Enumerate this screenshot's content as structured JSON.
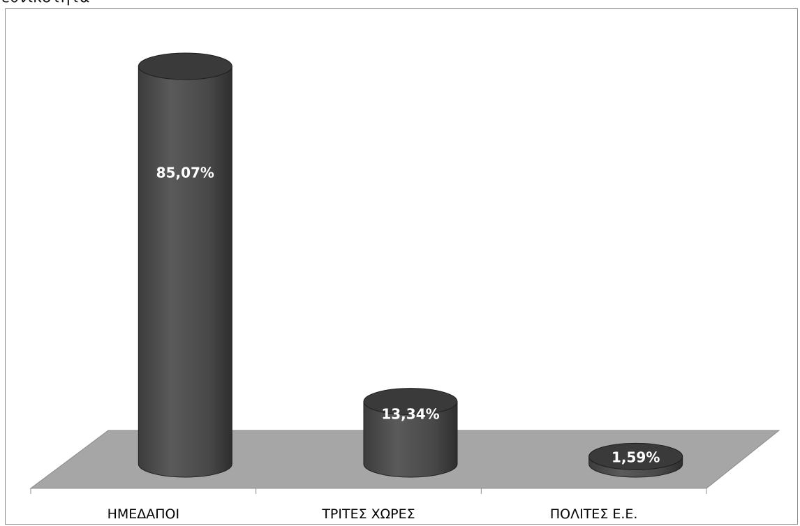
{
  "chart_data": {
    "type": "bar",
    "title": "εθνικότητα",
    "categories": [
      "ΗΜΕΔΑΠΟΙ",
      "ΤΡΙΤΕΣ ΧΩΡΕΣ",
      "ΠΟΛΙΤΕΣ Ε.Ε."
    ],
    "values": [
      85.07,
      13.34,
      1.59
    ],
    "value_labels": [
      "85,07%",
      "13,34%",
      "1,59%"
    ],
    "ylim": [
      0,
      100
    ],
    "grid": false,
    "legend": "none",
    "style": "3d-cylinder",
    "colors": {
      "bar": "#474747",
      "bar_top": "#3a3a3a",
      "floor": "#a6a6a6",
      "frame": "#8c8c8c"
    }
  }
}
